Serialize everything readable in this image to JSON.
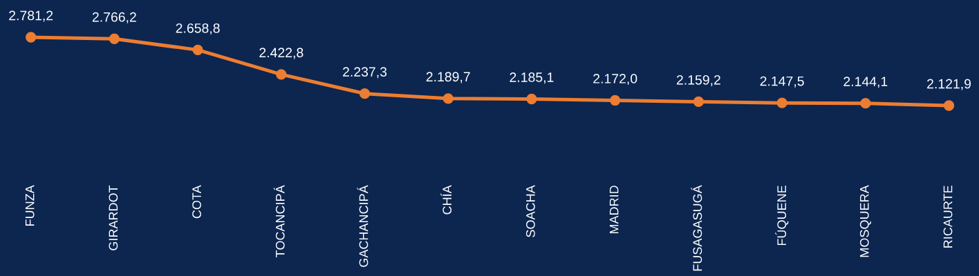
{
  "chart_data": {
    "type": "line",
    "categories": [
      "FUNZA",
      "GIRARDOT",
      "COTA",
      "TOCANCIPÁ",
      "GACHANCIPÁ",
      "CHÍA",
      "SOACHA",
      "MADRID",
      "FUSAGASUGÁ",
      "FÚQUENE",
      "MOSQUERA",
      "RICAURTE"
    ],
    "series": [
      {
        "color": "#ed7d31",
        "values": [
          2781.2,
          2766.2,
          2658.8,
          2422.8,
          2237.3,
          2189.7,
          2185.1,
          2172.0,
          2159.2,
          2147.5,
          2144.1,
          2121.9
        ],
        "value_labels": [
          "2.781,2",
          "2.766,2",
          "2.658,8",
          "2.422,8",
          "2.237,3",
          "2.189,7",
          "2.185,1",
          "2.172,0",
          "2.159,2",
          "2.147,5",
          "2.144,1",
          "2.121,9"
        ]
      }
    ],
    "tick_labels": "x",
    "grid": false,
    "marker": "circle",
    "line_style": "solid"
  }
}
